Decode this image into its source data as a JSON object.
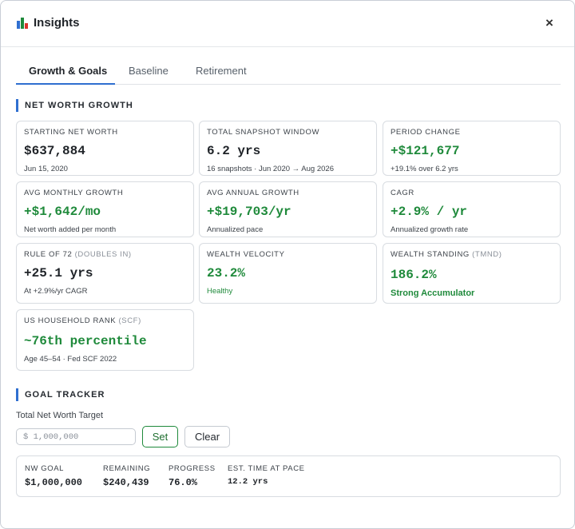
{
  "header": {
    "title": "Insights",
    "close_label": "×"
  },
  "tabs": [
    {
      "label": "Growth & Goals",
      "active": true
    },
    {
      "label": "Baseline",
      "active": false
    },
    {
      "label": "Retirement",
      "active": false
    }
  ],
  "net_worth_section": {
    "heading": "NET WORTH GROWTH",
    "cards": [
      {
        "label": "STARTING NET WORTH",
        "label_muted": "",
        "value": "$637,884",
        "sub": "Jun 15, 2020"
      },
      {
        "label": "TOTAL SNAPSHOT WINDOW",
        "label_muted": "",
        "value": "6.2 yrs",
        "sub": "16 snapshots · Jun 2020 → Aug 2026"
      },
      {
        "label": "PERIOD CHANGE",
        "label_muted": "",
        "value": "+$121,677",
        "sub": "+19.1% over 6.2 yrs"
      },
      {
        "label": "AVG MONTHLY GROWTH",
        "label_muted": "",
        "value": "+$1,642/mo",
        "sub": "Net worth added per month"
      },
      {
        "label": "AVG ANNUAL GROWTH",
        "label_muted": "",
        "value": "+$19,703/yr",
        "sub": "Annualized pace"
      },
      {
        "label": "CAGR",
        "label_muted": "",
        "value": "+2.9% / yr",
        "sub": "Annualized growth rate"
      },
      {
        "label": "RULE OF 72 ",
        "label_muted": "(DOUBLES IN)",
        "value": "+25.1 yrs",
        "sub": "At +2.9%/yr CAGR"
      },
      {
        "label": "WEALTH VELOCITY",
        "label_muted": "",
        "value": "23.2%",
        "sub": "Healthy"
      },
      {
        "label": "WEALTH STANDING ",
        "label_muted": "(TMND)",
        "value": "186.2%",
        "sub": "Strong Accumulator"
      },
      {
        "label": "US HOUSEHOLD RANK ",
        "label_muted": "(SCF)",
        "value": "~76th percentile",
        "sub": "Age 45–54 · Fed SCF 2022"
      }
    ]
  },
  "goal_section": {
    "heading": "GOAL TRACKER",
    "field_label": "Total Net Worth Target",
    "input_placeholder": "$ 1,000,000",
    "set_label": "Set",
    "clear_label": "Clear",
    "summary": [
      {
        "label": "NW GOAL",
        "value": "$1,000,000"
      },
      {
        "label": "REMAINING",
        "value": "$240,439"
      },
      {
        "label": "PROGRESS",
        "value": "76.0%"
      },
      {
        "label": "EST. TIME AT PACE",
        "value": "12.2 yrs"
      }
    ]
  },
  "colors": {
    "accent": "#2f6fd0",
    "positive": "#1f8a3b",
    "chart_icon": [
      "#2f6fd0",
      "#1f8a3b",
      "#d9342b"
    ]
  },
  "icons": {
    "title_icon": "bar-chart-icon",
    "close_icon": "close-icon"
  }
}
